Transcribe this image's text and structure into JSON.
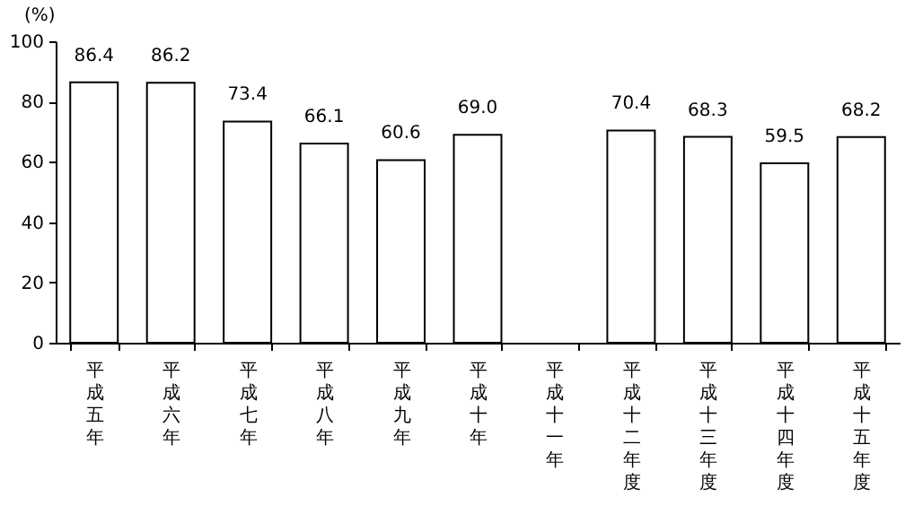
{
  "chart_data": {
    "type": "bar",
    "ylabel": "(%)",
    "categories": [
      "平成五年",
      "平成六年",
      "平成七年",
      "平成八年",
      "平成九年",
      "平成十年",
      "平成十一年",
      "平成十二年度",
      "平成十三年度",
      "平成十四年度",
      "平成十五年度"
    ],
    "values": [
      86.4,
      86.2,
      73.4,
      66.1,
      60.6,
      69.0,
      null,
      70.4,
      68.3,
      59.5,
      68.2
    ],
    "value_labels": [
      "86.4",
      "86.2",
      "73.4",
      "66.1",
      "60.6",
      "69.0",
      null,
      "70.4",
      "68.3",
      "59.5",
      "68.2"
    ],
    "color": "#ffffff",
    "ylim": [
      0,
      100
    ],
    "yticks": [
      0,
      20,
      40,
      60,
      80,
      100
    ],
    "grid": false
  }
}
